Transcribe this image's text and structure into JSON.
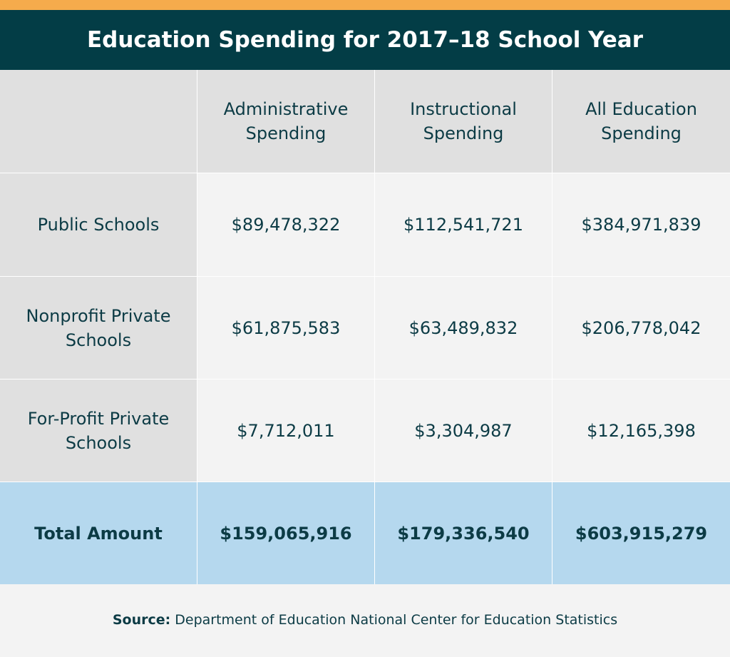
{
  "header": {
    "title": "Education Spending for 2017–18 School Year"
  },
  "table": {
    "column_headers": [
      "Administrative Spending",
      "Instructional Spending",
      "All Education Spending"
    ],
    "rows": [
      {
        "label": "Public Schools",
        "cells": [
          "$89,478,322",
          "$112,541,721",
          "$384,971,839"
        ]
      },
      {
        "label": "Nonprofit Private Schools",
        "cells": [
          "$61,875,583",
          "$63,489,832",
          "$206,778,042"
        ]
      },
      {
        "label": "For-Profit Private Schools",
        "cells": [
          "$7,712,011",
          "$3,304,987",
          "$12,165,398"
        ]
      }
    ],
    "total": {
      "label": "Total Amount",
      "cells": [
        "$159,065,916",
        "$179,336,540",
        "$603,915,279"
      ]
    }
  },
  "source": {
    "label": "Source:",
    "text": "Department of Education National Center for Education Statistics"
  }
}
